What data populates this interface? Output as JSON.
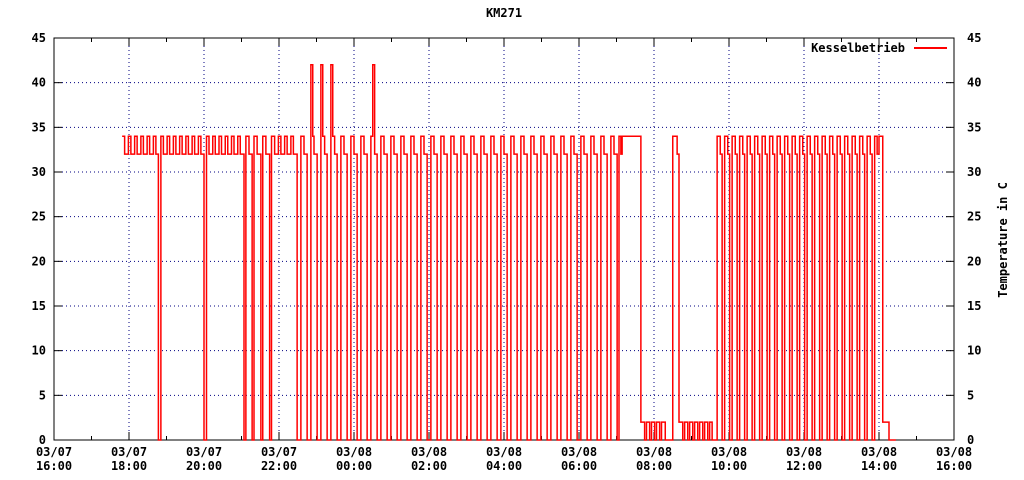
{
  "title": "KM271",
  "legend": {
    "label": "Kesselbetrieb",
    "line_color": "#ff0000"
  },
  "axes": {
    "y_ticks": [
      0,
      5,
      10,
      15,
      20,
      25,
      30,
      35,
      40,
      45
    ],
    "y_right_label": "Temperature in C",
    "x_ticks": [
      {
        "date": "03/07",
        "time": "16:00",
        "minutes": 0
      },
      {
        "date": "03/07",
        "time": "18:00",
        "minutes": 120
      },
      {
        "date": "03/07",
        "time": "20:00",
        "minutes": 240
      },
      {
        "date": "03/07",
        "time": "22:00",
        "minutes": 360
      },
      {
        "date": "03/08",
        "time": "00:00",
        "minutes": 480
      },
      {
        "date": "03/08",
        "time": "02:00",
        "minutes": 600
      },
      {
        "date": "03/08",
        "time": "04:00",
        "minutes": 720
      },
      {
        "date": "03/08",
        "time": "06:00",
        "minutes": 840
      },
      {
        "date": "03/08",
        "time": "08:00",
        "minutes": 960
      },
      {
        "date": "03/08",
        "time": "10:00",
        "minutes": 1080
      },
      {
        "date": "03/08",
        "time": "12:00",
        "minutes": 1200
      },
      {
        "date": "03/08",
        "time": "14:00",
        "minutes": 1320
      },
      {
        "date": "03/08",
        "time": "16:00",
        "minutes": 1440
      }
    ],
    "x_minor_interval_minutes": 60,
    "grid_color": "#000080",
    "border_color": "#000000",
    "text_color": "#000000"
  },
  "chart_data": {
    "type": "line",
    "title": "KM271",
    "xlabel": "",
    "ylabel": "Temperature in C",
    "ylim": [
      0,
      45
    ],
    "xlim_minutes": [
      0,
      1440
    ],
    "x_origin": "03/07 16:00",
    "x_end": "03/08 16:00",
    "grid": "on",
    "legend_position": "top-right-inside",
    "series": [
      {
        "name": "Kesselbetrieb",
        "color": "#ff0000",
        "style": "steps",
        "x_unit": "minutes_since_03/07_16:00",
        "points": [
          [
            109,
            34
          ],
          [
            113,
            32
          ],
          [
            119,
            34
          ],
          [
            123,
            32
          ],
          [
            129,
            34
          ],
          [
            133,
            32
          ],
          [
            139,
            34
          ],
          [
            143,
            32
          ],
          [
            149,
            34
          ],
          [
            153,
            32
          ],
          [
            159,
            34
          ],
          [
            163,
            32
          ],
          [
            167,
            0
          ],
          [
            171,
            34
          ],
          [
            175,
            32
          ],
          [
            181,
            34
          ],
          [
            185,
            32
          ],
          [
            191,
            34
          ],
          [
            195,
            32
          ],
          [
            201,
            34
          ],
          [
            205,
            32
          ],
          [
            211,
            34
          ],
          [
            215,
            32
          ],
          [
            221,
            34
          ],
          [
            225,
            32
          ],
          [
            231,
            34
          ],
          [
            235,
            32
          ],
          [
            240,
            0
          ],
          [
            244,
            34
          ],
          [
            248,
            32
          ],
          [
            254,
            34
          ],
          [
            258,
            32
          ],
          [
            264,
            34
          ],
          [
            268,
            32
          ],
          [
            274,
            34
          ],
          [
            278,
            32
          ],
          [
            284,
            34
          ],
          [
            288,
            32
          ],
          [
            294,
            34
          ],
          [
            298,
            32
          ],
          [
            304,
            0
          ],
          [
            307,
            34
          ],
          [
            312,
            32
          ],
          [
            317,
            0
          ],
          [
            320,
            34
          ],
          [
            325,
            32
          ],
          [
            331,
            0
          ],
          [
            334,
            34
          ],
          [
            339,
            32
          ],
          [
            345,
            0
          ],
          [
            348,
            34
          ],
          [
            353,
            32
          ],
          [
            359,
            34
          ],
          [
            363,
            32
          ],
          [
            369,
            34
          ],
          [
            373,
            32
          ],
          [
            379,
            34
          ],
          [
            383,
            32
          ],
          [
            389,
            0
          ],
          [
            395,
            34
          ],
          [
            400,
            32
          ],
          [
            405,
            0
          ],
          [
            411,
            42
          ],
          [
            414,
            34
          ],
          [
            416,
            32
          ],
          [
            421,
            0
          ],
          [
            427,
            42
          ],
          [
            430,
            34
          ],
          [
            433,
            32
          ],
          [
            437,
            0
          ],
          [
            443,
            42
          ],
          [
            446,
            34
          ],
          [
            449,
            32
          ],
          [
            453,
            0
          ],
          [
            459,
            34
          ],
          [
            464,
            32
          ],
          [
            469,
            0
          ],
          [
            475,
            34
          ],
          [
            480,
            32
          ],
          [
            485,
            0
          ],
          [
            491,
            34
          ],
          [
            496,
            32
          ],
          [
            501,
            0
          ],
          [
            507,
            34
          ],
          [
            510,
            42
          ],
          [
            513,
            32
          ],
          [
            517,
            0
          ],
          [
            523,
            34
          ],
          [
            528,
            32
          ],
          [
            533,
            0
          ],
          [
            539,
            34
          ],
          [
            544,
            32
          ],
          [
            549,
            0
          ],
          [
            555,
            34
          ],
          [
            560,
            32
          ],
          [
            565,
            0
          ],
          [
            571,
            34
          ],
          [
            576,
            32
          ],
          [
            581,
            0
          ],
          [
            587,
            34
          ],
          [
            592,
            32
          ],
          [
            597,
            0
          ],
          [
            603,
            34
          ],
          [
            608,
            32
          ],
          [
            613,
            0
          ],
          [
            619,
            34
          ],
          [
            624,
            32
          ],
          [
            629,
            0
          ],
          [
            635,
            34
          ],
          [
            640,
            32
          ],
          [
            645,
            0
          ],
          [
            651,
            34
          ],
          [
            656,
            32
          ],
          [
            661,
            0
          ],
          [
            667,
            34
          ],
          [
            672,
            32
          ],
          [
            677,
            0
          ],
          [
            683,
            34
          ],
          [
            688,
            32
          ],
          [
            693,
            0
          ],
          [
            699,
            34
          ],
          [
            704,
            32
          ],
          [
            709,
            0
          ],
          [
            715,
            34
          ],
          [
            720,
            32
          ],
          [
            725,
            0
          ],
          [
            731,
            34
          ],
          [
            736,
            32
          ],
          [
            741,
            0
          ],
          [
            747,
            34
          ],
          [
            752,
            32
          ],
          [
            757,
            0
          ],
          [
            763,
            34
          ],
          [
            768,
            32
          ],
          [
            773,
            0
          ],
          [
            779,
            34
          ],
          [
            784,
            32
          ],
          [
            789,
            0
          ],
          [
            795,
            34
          ],
          [
            800,
            32
          ],
          [
            805,
            0
          ],
          [
            811,
            34
          ],
          [
            816,
            32
          ],
          [
            821,
            0
          ],
          [
            827,
            34
          ],
          [
            832,
            32
          ],
          [
            837,
            0
          ],
          [
            843,
            34
          ],
          [
            848,
            32
          ],
          [
            853,
            0
          ],
          [
            859,
            34
          ],
          [
            864,
            32
          ],
          [
            869,
            0
          ],
          [
            875,
            34
          ],
          [
            880,
            32
          ],
          [
            885,
            0
          ],
          [
            891,
            34
          ],
          [
            896,
            32
          ],
          [
            901,
            0
          ],
          [
            904,
            34
          ],
          [
            907,
            32
          ],
          [
            909,
            34
          ],
          [
            939,
            2
          ],
          [
            945,
            0
          ],
          [
            948,
            2
          ],
          [
            953,
            0
          ],
          [
            956,
            2
          ],
          [
            961,
            0
          ],
          [
            964,
            2
          ],
          [
            969,
            0
          ],
          [
            972,
            2
          ],
          [
            978,
            0
          ],
          [
            990,
            34
          ],
          [
            997,
            32
          ],
          [
            1000,
            2
          ],
          [
            1006,
            0
          ],
          [
            1009,
            2
          ],
          [
            1014,
            0
          ],
          [
            1017,
            2
          ],
          [
            1022,
            0
          ],
          [
            1025,
            2
          ],
          [
            1030,
            0
          ],
          [
            1033,
            2
          ],
          [
            1038,
            0
          ],
          [
            1041,
            2
          ],
          [
            1046,
            0
          ],
          [
            1049,
            2
          ],
          [
            1053,
            0
          ],
          [
            1061,
            34
          ],
          [
            1066,
            32
          ],
          [
            1069,
            0
          ],
          [
            1073,
            34
          ],
          [
            1078,
            32
          ],
          [
            1081,
            0
          ],
          [
            1085,
            34
          ],
          [
            1090,
            32
          ],
          [
            1093,
            0
          ],
          [
            1097,
            34
          ],
          [
            1102,
            32
          ],
          [
            1105,
            0
          ],
          [
            1109,
            34
          ],
          [
            1114,
            32
          ],
          [
            1117,
            0
          ],
          [
            1121,
            34
          ],
          [
            1126,
            32
          ],
          [
            1129,
            0
          ],
          [
            1133,
            34
          ],
          [
            1138,
            32
          ],
          [
            1141,
            0
          ],
          [
            1145,
            34
          ],
          [
            1150,
            32
          ],
          [
            1153,
            0
          ],
          [
            1157,
            34
          ],
          [
            1162,
            32
          ],
          [
            1165,
            0
          ],
          [
            1169,
            34
          ],
          [
            1174,
            32
          ],
          [
            1177,
            0
          ],
          [
            1181,
            34
          ],
          [
            1186,
            32
          ],
          [
            1189,
            0
          ],
          [
            1193,
            34
          ],
          [
            1198,
            32
          ],
          [
            1201,
            0
          ],
          [
            1205,
            34
          ],
          [
            1210,
            32
          ],
          [
            1213,
            0
          ],
          [
            1217,
            34
          ],
          [
            1222,
            32
          ],
          [
            1225,
            0
          ],
          [
            1229,
            34
          ],
          [
            1234,
            32
          ],
          [
            1237,
            0
          ],
          [
            1241,
            34
          ],
          [
            1246,
            32
          ],
          [
            1249,
            0
          ],
          [
            1253,
            34
          ],
          [
            1258,
            32
          ],
          [
            1261,
            0
          ],
          [
            1265,
            34
          ],
          [
            1270,
            32
          ],
          [
            1273,
            0
          ],
          [
            1277,
            34
          ],
          [
            1282,
            32
          ],
          [
            1285,
            0
          ],
          [
            1289,
            34
          ],
          [
            1294,
            32
          ],
          [
            1297,
            0
          ],
          [
            1301,
            34
          ],
          [
            1306,
            32
          ],
          [
            1309,
            0
          ],
          [
            1313,
            34
          ],
          [
            1317,
            32
          ],
          [
            1320,
            34
          ],
          [
            1326,
            2
          ],
          [
            1336,
            0
          ],
          [
            1347,
            0
          ]
        ]
      }
    ]
  }
}
